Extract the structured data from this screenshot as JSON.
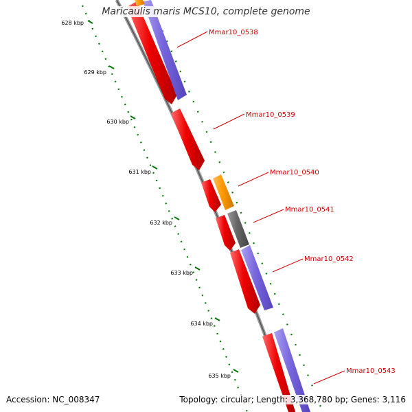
{
  "title": "Maricaulis maris MCS10, complete genome",
  "footer": {
    "accession": "Accession: NC_008347",
    "info": "Topology: circular; Length: 3,368,780 bp; Genes: 3,116"
  },
  "colors": {
    "cds": "#ee0000",
    "gene": "#7766dd",
    "orange": "#ff9900",
    "gray": "#666666",
    "backbone": "#888888",
    "ticks": "#007700",
    "label": "#cc0000"
  },
  "kbp_labels": [
    "628 kbp",
    "629 kbp",
    "630 kbp",
    "631 kbp",
    "632 kbp",
    "633 kbp",
    "634 kbp",
    "635 kbp"
  ],
  "gene_labels": [
    "Mmar10_0538",
    "Mmar10_0539",
    "Mmar10_0540",
    "Mmar10_0541",
    "Mmar10_0542",
    "Mmar10_0543"
  ],
  "feature_kinds": [
    "cds",
    "gene",
    "orange",
    "gray"
  ]
}
